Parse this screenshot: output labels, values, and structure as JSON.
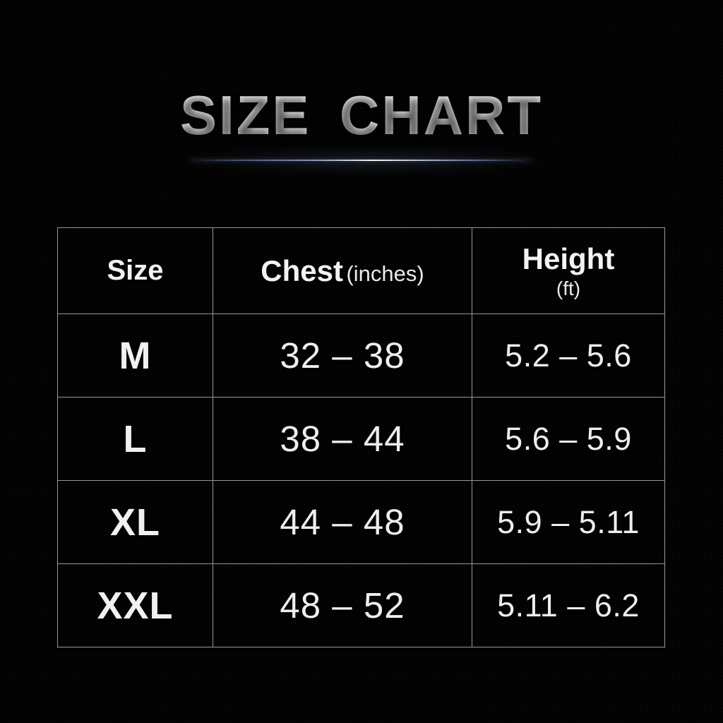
{
  "title": "SIZE CHART",
  "colors": {
    "background": "#020202",
    "text": "#efefef",
    "table_border": "#989898",
    "divider_highlight": "#f2f1ec",
    "divider_blue": "#3d4a66"
  },
  "table": {
    "header": {
      "size_label": "Size",
      "chest_label": "Chest",
      "chest_unit": "(inches)",
      "height_label": "Height",
      "height_unit": "(ft)"
    },
    "rows": [
      {
        "size": "M",
        "chest": "32 – 38",
        "height": "5.2 – 5.6"
      },
      {
        "size": "L",
        "chest": "38 – 44",
        "height": "5.6 – 5.9"
      },
      {
        "size": "XL",
        "chest": "44 – 48",
        "height": "5.9 – 5.11"
      },
      {
        "size": "XXL",
        "chest": "48 – 52",
        "height": "5.11 – 6.2"
      }
    ]
  },
  "chart_data": {
    "type": "table",
    "title": "SIZE CHART",
    "columns": [
      "Size",
      "Chest (inches)",
      "Height (ft)"
    ],
    "rows": [
      [
        "M",
        "32 – 38",
        "5.2 – 5.6"
      ],
      [
        "L",
        "38 – 44",
        "5.6 – 5.9"
      ],
      [
        "XL",
        "44 – 48",
        "5.9 – 5.11"
      ],
      [
        "XXL",
        "48 – 52",
        "5.11 – 6.2"
      ]
    ],
    "layout": {
      "grid": true,
      "background": "black",
      "text_color": "white"
    }
  }
}
